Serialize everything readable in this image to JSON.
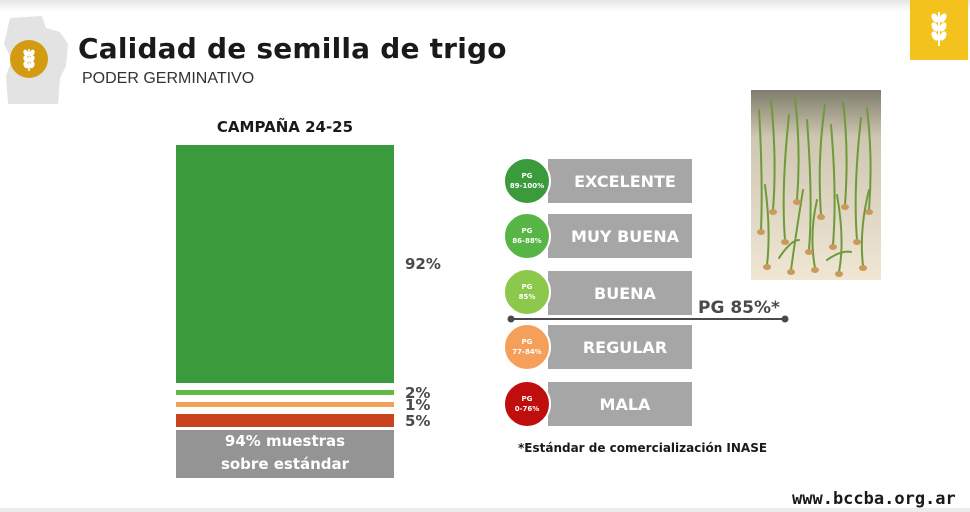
{
  "header": {
    "title": "Calidad de semilla de trigo",
    "subtitle": "PODER GERMINATIVO"
  },
  "colors": {
    "excelente": "#3a9a3c",
    "muy_buena": "#56b545",
    "buena": "#8cc84b",
    "regular": "#f5a05a",
    "mala": "#c00d0d",
    "category_box": "#a6a6a6",
    "standard_box": "#949494"
  },
  "chart_data": {
    "type": "bar",
    "title": "CAMPAÑA 24-25",
    "stacked": true,
    "series": [
      {
        "category": "EXCELENTE",
        "value": 92,
        "label": "92%",
        "color": "#3a9a3c"
      },
      {
        "category": "BUENA",
        "value": 2,
        "label": "2%",
        "color": "#63b946"
      },
      {
        "category": "REGULAR",
        "value": 1,
        "label": "1%",
        "color": "#f5a05a"
      },
      {
        "category": "MALA",
        "value": 5,
        "label": "5%",
        "color": "#c8431e"
      }
    ],
    "summary": [
      "94% muestras",
      "sobre estándar"
    ]
  },
  "legend": {
    "categories": [
      {
        "name": "EXCELENTE",
        "badge_line1": "PG",
        "badge_line2": "89-100%",
        "color": "#3a9a3c"
      },
      {
        "name": "MUY BUENA",
        "badge_line1": "PG",
        "badge_line2": "86-88%",
        "color": "#56b545"
      },
      {
        "name": "BUENA",
        "badge_line1": "PG",
        "badge_line2": "85%",
        "color": "#8cc84b"
      },
      {
        "name": "REGULAR",
        "badge_line1": "PG",
        "badge_line2": "77-84%",
        "color": "#f5a05a"
      },
      {
        "name": "MALA",
        "badge_line1": "PG",
        "badge_line2": "0-76%",
        "color": "#c00d0d"
      }
    ],
    "reference_line": {
      "label": "PG 85%*"
    }
  },
  "footnote": "*Estándar de comercialización INASE",
  "footer": {
    "website": "www.bccba.org.ar"
  },
  "icons": [
    "map-icon",
    "wheat-icon"
  ]
}
